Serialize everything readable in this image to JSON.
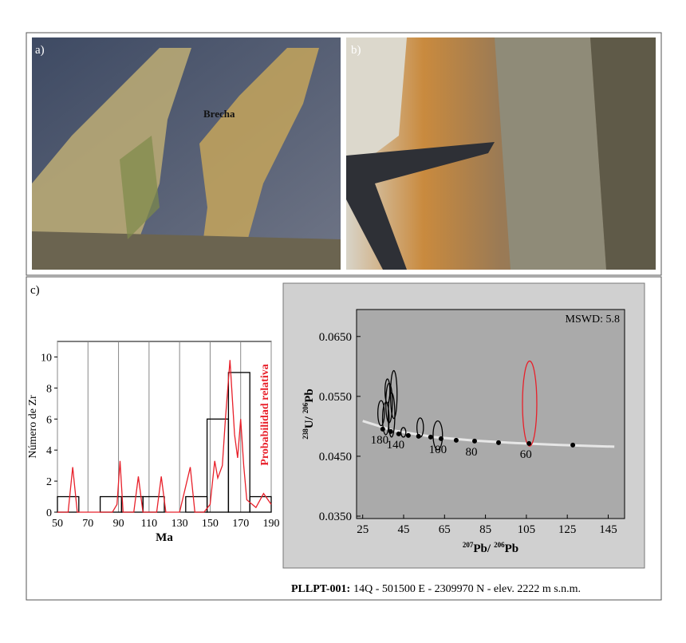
{
  "panels": {
    "a": "a)",
    "b": "b)",
    "c": "c)",
    "brecha": "Brecha"
  },
  "chart_data": [
    {
      "type": "histogram",
      "ylabel": "Número de Zr",
      "xlabel": "Ma",
      "y2label": "Probabilidad relativa",
      "bins": [
        50,
        64,
        78,
        92,
        106,
        120,
        134,
        148,
        162,
        176,
        190
      ],
      "values": [
        1,
        0,
        1,
        1,
        1,
        0,
        1,
        6,
        9,
        1
      ],
      "color": "#000000",
      "xlim": [
        50,
        190
      ],
      "xticks": [
        50,
        70,
        90,
        110,
        130,
        150,
        170,
        190
      ],
      "ylim": [
        0,
        11
      ],
      "yticks": [
        0,
        2,
        4,
        6,
        8,
        10
      ],
      "grid": true,
      "probability": {
        "color": "#e8202a",
        "x": [
          50,
          57,
          60,
          63,
          70,
          86,
          89,
          91,
          93,
          100,
          103,
          106,
          115,
          118,
          121,
          130,
          137,
          140,
          146,
          150,
          153,
          155,
          158,
          160,
          163,
          166,
          168,
          170,
          172,
          174,
          180,
          185,
          190
        ],
        "values": [
          0,
          0,
          2.9,
          0,
          0,
          0,
          0.5,
          3.3,
          0,
          0,
          2.3,
          0,
          0,
          2.3,
          0,
          0,
          2.9,
          0,
          0,
          0.5,
          3.3,
          2.2,
          3,
          6,
          9.8,
          5,
          3.5,
          6,
          3,
          0.8,
          0.3,
          1.2,
          0.5
        ]
      }
    },
    {
      "type": "concordia",
      "annotation": "MSWD: 5.8",
      "xlabel": {
        "mass1": "207",
        "el1": "Pb/",
        "mass2": "206",
        "el2": "Pb"
      },
      "ylabel": {
        "mass1": "238",
        "el1": "U/",
        "mass2": "206",
        "el2": "Pb"
      },
      "xlim": [
        22,
        153
      ],
      "xticks": [
        25,
        45,
        65,
        85,
        105,
        125,
        145
      ],
      "ylim": [
        0.0346,
        0.0695
      ],
      "yticks": [
        {
          "value": 0.035,
          "label": "0.0350"
        },
        {
          "value": 0.045,
          "label": "0.0450"
        },
        {
          "value": 0.055,
          "label": "0.0550"
        },
        {
          "value": 0.065,
          "label": "0.0650"
        }
      ],
      "curve": {
        "color": "#e6e6e6",
        "x": [
          25,
          40,
          60,
          80,
          100,
          120,
          148
        ],
        "values": [
          0.0509,
          0.0493,
          0.0482,
          0.0476,
          0.0472,
          0.0469,
          0.0466
        ]
      },
      "points": {
        "color": "#000000",
        "x": [
          34.8,
          38.7,
          42.6,
          47.3,
          52.3,
          58.2,
          63.3,
          70.7,
          79.7,
          91.4,
          106.3,
          127.7
        ],
        "values": [
          0.04953,
          0.04913,
          0.04873,
          0.04847,
          0.04833,
          0.0482,
          0.04793,
          0.04767,
          0.04753,
          0.04727,
          0.04713,
          0.04687
        ],
        "age_labels": [
          180,
          null,
          140,
          null,
          null,
          null,
          100,
          null,
          80,
          null,
          60,
          null
        ]
      },
      "ellipses": [
        {
          "color": "#000000",
          "x": [
            34.0,
            36.3,
            37.9,
            39.1,
            40.2,
            37.1,
            44.9,
            53.1,
            61.7
          ],
          "values": [
            0.0522,
            0.0513,
            0.0539,
            0.0519,
            0.0553,
            0.0559,
            0.049,
            0.0498,
            0.0485
          ],
          "x_err": [
            1.6,
            1.6,
            1.6,
            1.6,
            1.6,
            1.2,
            1.2,
            1.6,
            2.3
          ],
          "y_err": [
            0.0021,
            0.0027,
            0.0033,
            0.0037,
            0.004,
            0.002,
            0.0008,
            0.0016,
            0.0024
          ]
        },
        {
          "color": "#e8202a",
          "x": [
            106.6
          ],
          "values": [
            0.0538
          ],
          "x_err": [
            3.5
          ],
          "y_err": [
            0.0071
          ]
        }
      ]
    }
  ],
  "caption": {
    "id": "PLLPT-001:",
    "text": "14Q - 501500 E - 2309970 N - elev. 2222 m s.n.m."
  }
}
